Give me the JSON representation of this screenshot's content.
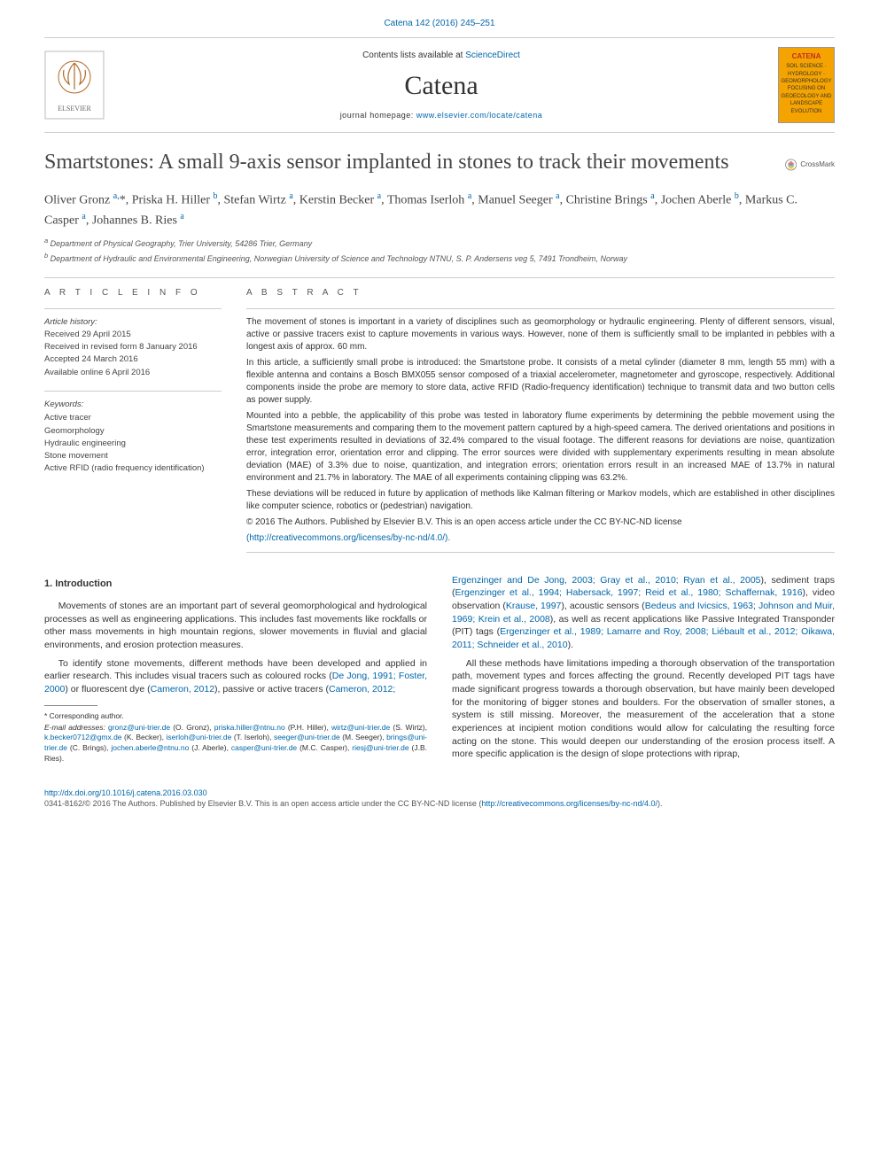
{
  "top_citation": {
    "text": "Catena 142 (2016) 245–251",
    "href": "#"
  },
  "masthead": {
    "availability_prefix": "Contents lists available at ",
    "availability_link": "ScienceDirect",
    "journal": "Catena",
    "homepage_label": "journal homepage: ",
    "homepage_url": "www.elsevier.com/locate/catena",
    "publisher_logo_alt": "Elsevier tree logo",
    "cover_title": "CATENA",
    "cover_sub1": "SOIL SCIENCE · HYDROLOGY · GEOMORPHOLOGY",
    "cover_sub2": "FOCUSING ON GEOECOLOGY AND LANDSCAPE EVOLUTION"
  },
  "title": "Smartstones: A small 9-axis sensor implanted in stones to track their movements",
  "crossmark_label": "CrossMark",
  "authors_html": "Oliver Gronz <sup>a,</sup>*, Priska H. Hiller <sup>b</sup>, Stefan Wirtz <sup>a</sup>, Kerstin Becker <sup>a</sup>, Thomas Iserloh <sup>a</sup>, Manuel Seeger <sup>a</sup>, Christine Brings <sup>a</sup>, Jochen Aberle <sup>b</sup>, Markus C. Casper <sup>a</sup>, Johannes B. Ries <sup>a</sup>",
  "affiliations": [
    {
      "marker": "a",
      "text": "Department of Physical Geography, Trier University, 54286 Trier, Germany"
    },
    {
      "marker": "b",
      "text": "Department of Hydraulic and Environmental Engineering, Norwegian University of Science and Technology NTNU, S. P. Andersens veg 5, 7491 Trondheim, Norway"
    }
  ],
  "article_info_heading": "A R T I C L E   I N F O",
  "abstract_heading": "A B S T R A C T",
  "history": {
    "label": "Article history:",
    "received": "Received 29 April 2015",
    "revised": "Received in revised form 8 January 2016",
    "accepted": "Accepted 24 March 2016",
    "online": "Available online 6 April 2016"
  },
  "keywords": {
    "label": "Keywords:",
    "items": [
      "Active tracer",
      "Geomorphology",
      "Hydraulic engineering",
      "Stone movement",
      "Active RFID (radio frequency identification)"
    ]
  },
  "abstract": {
    "p1": "The movement of stones is important in a variety of disciplines such as geomorphology or hydraulic engineering. Plenty of different sensors, visual, active or passive tracers exist to capture movements in various ways. However, none of them is sufficiently small to be implanted in pebbles with a longest axis of approx. 60 mm.",
    "p2": "In this article, a sufficiently small probe is introduced: the Smartstone probe. It consists of a metal cylinder (diameter 8 mm, length 55 mm) with a flexible antenna and contains a Bosch BMX055 sensor composed of a triaxial accelerometer, magnetometer and gyroscope, respectively. Additional components inside the probe are memory to store data, active RFID (Radio-frequency identification) technique to transmit data and two button cells as power supply.",
    "p3": "Mounted into a pebble, the applicability of this probe was tested in laboratory flume experiments by determining the pebble movement using the Smartstone measurements and comparing them to the movement pattern captured by a high-speed camera. The derived orientations and positions in these test experiments resulted in deviations of 32.4% compared to the visual footage. The different reasons for deviations are noise, quantization error, integration error, orientation error and clipping. The error sources were divided with supplementary experiments resulting in mean absolute deviation (MAE) of 3.3% due to noise, quantization, and integration errors; orientation errors result in an increased MAE of 13.7% in natural environment and 21.7% in laboratory. The MAE of all experiments containing clipping was 63.2%.",
    "p4": "These deviations will be reduced in future by application of methods like Kalman filtering or Markov models, which are established in other disciplines like computer science, robotics or (pedestrian) navigation.",
    "copyright": "© 2016 The Authors. Published by Elsevier B.V. This is an open access article under the CC BY-NC-ND license",
    "license_url": "(http://creativecommons.org/licenses/by-nc-nd/4.0/)."
  },
  "body": {
    "section1_heading": "1. Introduction",
    "p1": "Movements of stones are an important part of several geomorphological and hydrological processes as well as engineering applications. This includes fast movements like rockfalls or other mass movements in high mountain regions, slower movements in fluvial and glacial environments, and erosion protection measures.",
    "p2a": "To identify stone movements, different methods have been developed and applied in earlier research. This includes visual tracers such as coloured rocks (",
    "p2_cite1": "De Jong, 1991; Foster, 2000",
    "p2b": ") or fluorescent dye (",
    "p2_cite2": "Cameron, 2012",
    "p2c": "), passive or active tracers (",
    "p2_cite3": "Cameron, 2012;",
    "p3_cite1": "Ergenzinger and De Jong, 2003; Gray et al., 2010; Ryan et al., 2005",
    "p3a": "), sediment traps (",
    "p3_cite2": "Ergenzinger et al., 1994; Habersack, 1997; Reid et al., 1980; Schaffernak, 1916",
    "p3b": "), video observation (",
    "p3_cite3": "Krause, 1997",
    "p3c": "), acoustic sensors (",
    "p3_cite4": "Bedeus and Ivicsics, 1963; Johnson and Muir, 1969; Krein et al., 2008",
    "p3d": "), as well as recent applications like Passive Integrated Transponder (PIT) tags (",
    "p3_cite5": "Ergenzinger et al., 1989; Lamarre and Roy, 2008; Liébault et al., 2012; Oikawa, 2011; Schneider et al., 2010",
    "p3e": ").",
    "p4": "All these methods have limitations impeding a thorough observation of the transportation path, movement types and forces affecting the ground. Recently developed PIT tags have made significant progress towards a thorough observation, but have mainly been developed for the monitoring of bigger stones and boulders. For the observation of smaller stones, a system is still missing. Moreover, the measurement of the acceleration that a stone experiences at incipient motion conditions would allow for calculating the resulting force acting on the stone. This would deepen our understanding of the erosion process itself. A more specific application is the design of slope protections with riprap,"
  },
  "footnotes": {
    "corr": "* Corresponding author.",
    "email_label": "E-mail addresses:",
    "emails": [
      {
        "addr": "gronz@uni-trier.de",
        "who": "(O. Gronz)"
      },
      {
        "addr": "priska.hiller@ntnu.no",
        "who": "(P.H. Hiller)"
      },
      {
        "addr": "wirtz@uni-trier.de",
        "who": "(S. Wirtz)"
      },
      {
        "addr": "k.becker0712@gmx.de",
        "who": "(K. Becker)"
      },
      {
        "addr": "iserloh@uni-trier.de",
        "who": "(T. Iserloh)"
      },
      {
        "addr": "seeger@uni-trier.de",
        "who": "(M. Seeger)"
      },
      {
        "addr": "brings@uni-trier.de",
        "who": "(C. Brings)"
      },
      {
        "addr": "jochen.aberle@ntnu.no",
        "who": "(J. Aberle)"
      },
      {
        "addr": "casper@uni-trier.de",
        "who": "(M.C. Casper)"
      },
      {
        "addr": "riesj@uni-trier.de",
        "who": "(J.B. Ries)"
      }
    ]
  },
  "footer": {
    "doi": "http://dx.doi.org/10.1016/j.catena.2016.03.030",
    "issn_line": "0341-8162/© 2016 The Authors. Published by Elsevier B.V. This is an open access article under the CC BY-NC-ND license (",
    "issn_url": "http://creativecommons.org/licenses/by-nc-nd/4.0/",
    "issn_tail": ")."
  },
  "colors": {
    "link": "#0066aa",
    "rule": "#cccccc",
    "text": "#333333",
    "cover_bg": "#f4a300",
    "cover_title": "#c03020"
  }
}
